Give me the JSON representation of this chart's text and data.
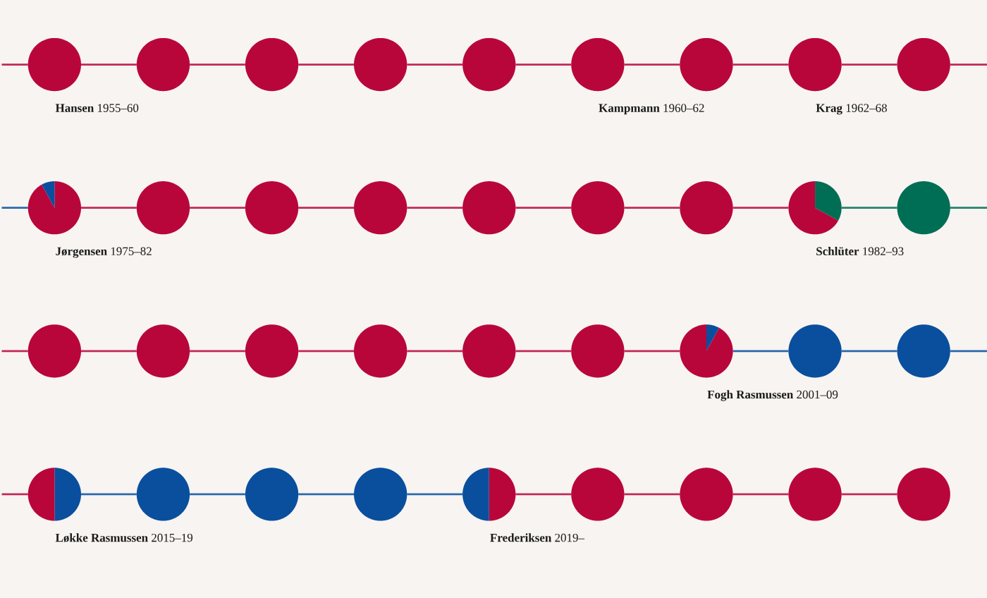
{
  "chart_data": [
    {
      "type": "pie",
      "categories": [
        null
      ],
      "values": [
        100
      ],
      "colors": [
        "#b8063b"
      ],
      "annotations": [
        "**Hansen** 1955–60"
      ]
    },
    {
      "type": "pie",
      "categories": [
        null
      ],
      "values": [
        100
      ],
      "colors": [
        "#b8063b"
      ]
    },
    {
      "type": "pie",
      "categories": [
        null
      ],
      "values": [
        100
      ],
      "colors": [
        "#b8063b"
      ]
    },
    {
      "type": "pie",
      "categories": [
        null
      ],
      "values": [
        100
      ],
      "colors": [
        "#b8063b"
      ]
    },
    {
      "type": "pie",
      "categories": [
        null
      ],
      "values": [
        100
      ],
      "colors": [
        "#b8063b"
      ]
    },
    {
      "type": "pie",
      "categories": [
        null
      ],
      "values": [
        100
      ],
      "colors": [
        "#b8063b"
      ],
      "annotations": [
        "**Kampmann** 1960–62"
      ]
    },
    {
      "type": "pie",
      "categories": [
        null
      ],
      "values": [
        100
      ],
      "colors": [
        "#b8063b"
      ]
    },
    {
      "type": "pie",
      "categories": [
        null
      ],
      "values": [
        100
      ],
      "colors": [
        "#b8063b"
      ],
      "annotations": [
        "**Krag** 1962–68"
      ]
    },
    {
      "type": "pie",
      "categories": [
        null
      ],
      "values": [
        100
      ],
      "colors": [
        "#b8063b"
      ]
    },
    {
      "type": "pie",
      "categories": [
        null,
        null
      ],
      "values": [
        92,
        8
      ],
      "colors": [
        "#b8063b",
        "#0a4f9e"
      ],
      "annotations": [
        "**Jørgensen** 1975–82"
      ]
    },
    {
      "type": "pie",
      "categories": [
        null
      ],
      "values": [
        100
      ],
      "colors": [
        "#b8063b"
      ]
    },
    {
      "type": "pie",
      "categories": [
        null
      ],
      "values": [
        100
      ],
      "colors": [
        "#b8063b"
      ]
    },
    {
      "type": "pie",
      "categories": [
        null
      ],
      "values": [
        100
      ],
      "colors": [
        "#b8063b"
      ]
    },
    {
      "type": "pie",
      "categories": [
        null
      ],
      "values": [
        100
      ],
      "colors": [
        "#b8063b"
      ]
    },
    {
      "type": "pie",
      "categories": [
        null
      ],
      "values": [
        100
      ],
      "colors": [
        "#b8063b"
      ]
    },
    {
      "type": "pie",
      "categories": [
        null
      ],
      "values": [
        100
      ],
      "colors": [
        "#b8063b"
      ]
    },
    {
      "type": "pie",
      "categories": [
        null,
        null
      ],
      "values": [
        33,
        67
      ],
      "colors": [
        "#006e54",
        "#b8063b"
      ],
      "annotations": [
        "**Schlüter** 1982–93"
      ]
    },
    {
      "type": "pie",
      "categories": [
        null
      ],
      "values": [
        100
      ],
      "colors": [
        "#006e54"
      ]
    },
    {
      "type": "pie",
      "categories": [
        null
      ],
      "values": [
        100
      ],
      "colors": [
        "#b8063b"
      ]
    },
    {
      "type": "pie",
      "categories": [
        null
      ],
      "values": [
        100
      ],
      "colors": [
        "#b8063b"
      ]
    },
    {
      "type": "pie",
      "categories": [
        null
      ],
      "values": [
        100
      ],
      "colors": [
        "#b8063b"
      ]
    },
    {
      "type": "pie",
      "categories": [
        null
      ],
      "values": [
        100
      ],
      "colors": [
        "#b8063b"
      ]
    },
    {
      "type": "pie",
      "categories": [
        null
      ],
      "values": [
        100
      ],
      "colors": [
        "#b8063b"
      ]
    },
    {
      "type": "pie",
      "categories": [
        null
      ],
      "values": [
        100
      ],
      "colors": [
        "#b8063b"
      ]
    },
    {
      "type": "pie",
      "categories": [
        null,
        null
      ],
      "values": [
        8,
        92
      ],
      "colors": [
        "#0a4f9e",
        "#b8063b"
      ],
      "annotations": [
        "**Fogh Rasmussen** 2001–09"
      ]
    },
    {
      "type": "pie",
      "categories": [
        null
      ],
      "values": [
        100
      ],
      "colors": [
        "#0a4f9e"
      ]
    },
    {
      "type": "pie",
      "categories": [
        null
      ],
      "values": [
        100
      ],
      "colors": [
        "#0a4f9e"
      ]
    },
    {
      "type": "pie",
      "categories": [
        null,
        null
      ],
      "values": [
        50,
        50
      ],
      "colors": [
        "#0a4f9e",
        "#b8063b"
      ],
      "annotations": [
        "**Løkke Rasmussen** 2015–19"
      ]
    },
    {
      "type": "pie",
      "categories": [
        null
      ],
      "values": [
        100
      ],
      "colors": [
        "#0a4f9e"
      ]
    },
    {
      "type": "pie",
      "categories": [
        null
      ],
      "values": [
        100
      ],
      "colors": [
        "#0a4f9e"
      ]
    },
    {
      "type": "pie",
      "categories": [
        null
      ],
      "values": [
        100
      ],
      "colors": [
        "#0a4f9e"
      ]
    },
    {
      "type": "pie",
      "categories": [
        null,
        null
      ],
      "values": [
        50,
        50
      ],
      "colors": [
        "#b8063b",
        "#0a4f9e"
      ],
      "annotations": [
        "**Frederiksen** 2019–"
      ]
    },
    {
      "type": "pie",
      "categories": [
        null
      ],
      "values": [
        100
      ],
      "colors": [
        "#b8063b"
      ]
    },
    {
      "type": "pie",
      "categories": [
        null
      ],
      "values": [
        100
      ],
      "colors": [
        "#b8063b"
      ]
    },
    {
      "type": "pie",
      "categories": [
        null
      ],
      "values": [
        100
      ],
      "colors": [
        "#b8063b"
      ]
    },
    {
      "type": "pie",
      "categories": [
        null
      ],
      "values": [
        100
      ],
      "colors": [
        "#b8063b"
      ]
    }
  ]
}
